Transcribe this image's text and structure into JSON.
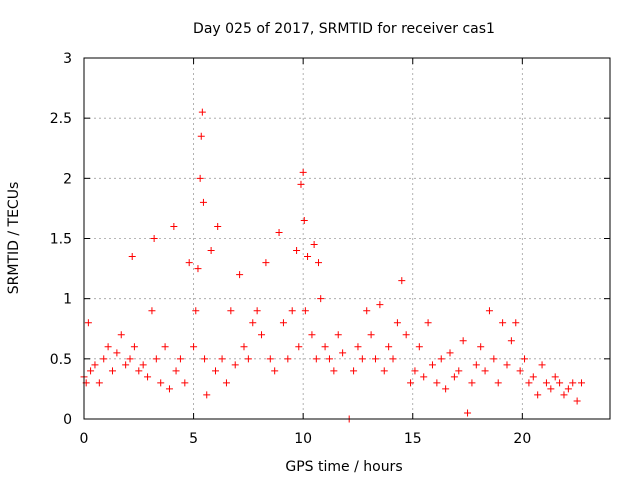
{
  "chart_data": {
    "type": "scatter",
    "title": "Day 025 of 2017, SRMTID for receiver cas1",
    "xlabel": "GPS time / hours",
    "ylabel": "SRMTID / TECUs",
    "xlim": [
      0,
      24
    ],
    "ylim": [
      0,
      3
    ],
    "xticks": [
      0,
      5,
      10,
      15,
      20
    ],
    "xtick_labels": [
      "0",
      "5",
      "10",
      "15",
      "20"
    ],
    "yticks": [
      0,
      0.5,
      1,
      1.5,
      2,
      2.5,
      3
    ],
    "ytick_labels": [
      "0",
      "0.5",
      "1",
      "1.5",
      "2",
      "2.5",
      "3"
    ],
    "grid": true,
    "marker": "plus",
    "color": "#ff0000",
    "series": [
      {
        "name": "SRMTID",
        "x": [
          0.0,
          0.1,
          0.2,
          0.3,
          0.5,
          0.7,
          0.9,
          1.1,
          1.3,
          1.5,
          1.7,
          1.9,
          2.1,
          2.2,
          2.3,
          2.5,
          2.7,
          2.9,
          3.1,
          3.2,
          3.3,
          3.5,
          3.7,
          3.9,
          4.1,
          4.2,
          4.4,
          4.6,
          4.8,
          5.0,
          5.1,
          5.2,
          5.3,
          5.35,
          5.4,
          5.45,
          5.5,
          5.6,
          5.8,
          6.0,
          6.1,
          6.3,
          6.5,
          6.7,
          6.9,
          7.1,
          7.3,
          7.5,
          7.7,
          7.9,
          8.1,
          8.3,
          8.5,
          8.7,
          8.9,
          9.1,
          9.3,
          9.5,
          9.7,
          9.8,
          9.9,
          10.0,
          10.05,
          10.1,
          10.2,
          10.4,
          10.5,
          10.6,
          10.7,
          10.8,
          11.0,
          11.2,
          11.4,
          11.6,
          11.8,
          12.1,
          12.3,
          12.5,
          12.7,
          12.9,
          13.1,
          13.3,
          13.5,
          13.7,
          13.9,
          14.1,
          14.3,
          14.5,
          14.7,
          14.9,
          15.1,
          15.3,
          15.5,
          15.7,
          15.9,
          16.1,
          16.3,
          16.5,
          16.7,
          16.9,
          17.1,
          17.3,
          17.5,
          17.7,
          17.9,
          18.1,
          18.3,
          18.5,
          18.7,
          18.9,
          19.1,
          19.3,
          19.5,
          19.7,
          19.9,
          20.1,
          20.3,
          20.5,
          20.7,
          20.9,
          21.1,
          21.3,
          21.5,
          21.7,
          21.9,
          22.1,
          22.3,
          22.5,
          22.7
        ],
        "y": [
          0.35,
          0.3,
          0.8,
          0.4,
          0.45,
          0.3,
          0.5,
          0.6,
          0.4,
          0.55,
          0.7,
          0.45,
          0.5,
          1.35,
          0.6,
          0.4,
          0.45,
          0.35,
          0.9,
          1.5,
          0.5,
          0.3,
          0.6,
          0.25,
          1.6,
          0.4,
          0.5,
          0.3,
          1.3,
          0.6,
          0.9,
          1.25,
          2.0,
          2.35,
          2.55,
          1.8,
          0.5,
          0.2,
          1.4,
          0.4,
          1.6,
          0.5,
          0.3,
          0.9,
          0.45,
          1.2,
          0.6,
          0.5,
          0.8,
          0.9,
          0.7,
          1.3,
          0.5,
          0.4,
          1.55,
          0.8,
          0.5,
          0.9,
          1.4,
          0.6,
          1.95,
          2.05,
          1.65,
          0.9,
          1.35,
          0.7,
          1.45,
          0.5,
          1.3,
          1.0,
          0.6,
          0.5,
          0.4,
          0.7,
          0.55,
          0.0,
          0.4,
          0.6,
          0.5,
          0.9,
          0.7,
          0.5,
          0.95,
          0.4,
          0.6,
          0.5,
          0.8,
          1.15,
          0.7,
          0.3,
          0.4,
          0.6,
          0.35,
          0.8,
          0.45,
          0.3,
          0.5,
          0.25,
          0.55,
          0.35,
          0.4,
          0.65,
          0.05,
          0.3,
          0.45,
          0.6,
          0.4,
          0.9,
          0.5,
          0.3,
          0.8,
          0.45,
          0.65,
          0.8,
          0.4,
          0.5,
          0.3,
          0.35,
          0.2,
          0.45,
          0.3,
          0.25,
          0.35,
          0.3,
          0.2,
          0.25,
          0.3,
          0.15,
          0.3
        ]
      }
    ]
  }
}
